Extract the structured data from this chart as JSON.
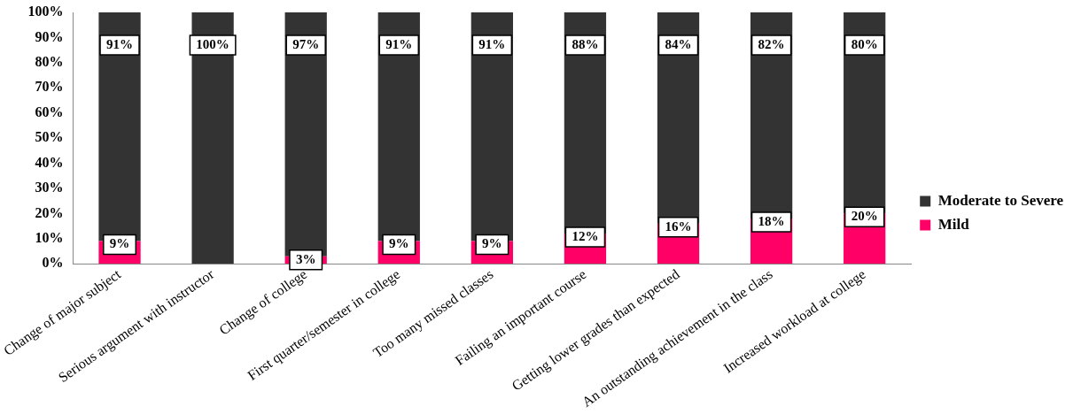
{
  "chart_data": {
    "type": "bar",
    "stacked": true,
    "categories": [
      "Change of major subject",
      "Serious argument with instructor",
      "Change of college",
      "First quarter/semester in college",
      "Too many missed classes",
      "Failing an important course",
      "Getting lower grades than expected",
      "An outstanding achievement in the class",
      "Increased workload at college"
    ],
    "series": [
      {
        "name": "Mild",
        "color": "#ff0066",
        "values": [
          9,
          0,
          3,
          9,
          9,
          12,
          16,
          18,
          20
        ],
        "value_labels": [
          "9%",
          null,
          "3%",
          "9%",
          "9%",
          "12%",
          "16%",
          "18%",
          "20%"
        ]
      },
      {
        "name": "Moderate to Severe",
        "color": "#333333",
        "values": [
          91,
          100,
          97,
          91,
          91,
          88,
          84,
          82,
          80
        ],
        "value_labels": [
          "91%",
          "100%",
          "97%",
          "91%",
          "91%",
          "88%",
          "84%",
          "82%",
          "80%"
        ]
      }
    ],
    "ylim": [
      0,
      100
    ],
    "yticks": [
      {
        "value": 0,
        "label": "0%"
      },
      {
        "value": 10,
        "label": "10%"
      },
      {
        "value": 20,
        "label": "20%"
      },
      {
        "value": 30,
        "label": "30%"
      },
      {
        "value": 40,
        "label": "40%"
      },
      {
        "value": 50,
        "label": "50%"
      },
      {
        "value": 60,
        "label": "60%"
      },
      {
        "value": 70,
        "label": "70%"
      },
      {
        "value": 80,
        "label": "80%"
      },
      {
        "value": 90,
        "label": "90%"
      },
      {
        "value": 100,
        "label": "100%"
      }
    ],
    "legend": "right"
  }
}
